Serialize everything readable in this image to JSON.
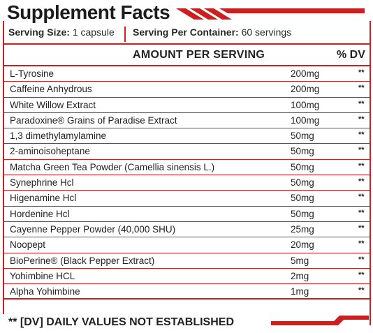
{
  "title": "Supplement Facts",
  "serving": {
    "size_label": "Serving Size:",
    "size_value": "1 capsule",
    "per_container_label": "Serving Per Container:",
    "per_container_value": "60 servings"
  },
  "headers": {
    "amount": "AMOUNT PER SERVING",
    "dv": "% DV"
  },
  "ingredients": [
    {
      "name": "L-Tyrosine",
      "amount": "200mg",
      "dv": "**"
    },
    {
      "name": "Caffeine Anhydrous",
      "amount": "200mg",
      "dv": "**"
    },
    {
      "name": "White Willow Extract",
      "amount": "100mg",
      "dv": "**"
    },
    {
      "name": "Paradoxine® Grains of Paradise Extract",
      "amount": "100mg",
      "dv": "**"
    },
    {
      "name": "1,3 dimethylamylamine",
      "amount": "50mg",
      "dv": "**"
    },
    {
      "name": "2-aminoisoheptane",
      "amount": "50mg",
      "dv": "**"
    },
    {
      "name": "Matcha Green Tea Powder (Camellia sinensis L.)",
      "amount": "50mg",
      "dv": "**"
    },
    {
      "name": "Synephrine Hcl",
      "amount": "50mg",
      "dv": "**"
    },
    {
      "name": "Higenamine Hcl",
      "amount": "50mg",
      "dv": "**"
    },
    {
      "name": "Hordenine Hcl",
      "amount": "50mg",
      "dv": "**"
    },
    {
      "name": "Cayenne Pepper Powder (40,000 SHU)",
      "amount": "25mg",
      "dv": "**"
    },
    {
      "name": "Noopept",
      "amount": "20mg",
      "dv": "**"
    },
    {
      "name": "BioPerine® (Black Pepper Extract)",
      "amount": "5mg",
      "dv": "**"
    },
    {
      "name": "Yohimbine HCL",
      "amount": "2mg",
      "dv": "**"
    },
    {
      "name": "Alpha Yohimbine",
      "amount": "1mg",
      "dv": "**"
    }
  ],
  "footnote": "** [DV] DAILY VALUES NOT ESTABLISHED",
  "colors": {
    "accent": "#cc1f1f",
    "text": "#222222"
  }
}
